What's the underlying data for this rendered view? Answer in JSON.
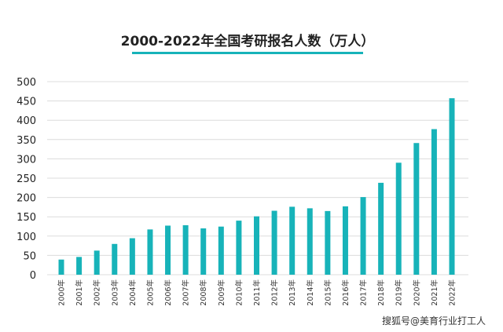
{
  "chart_data": {
    "type": "bar",
    "title": "2000-2022年全国考研报名人数（万人）",
    "xlabel": "",
    "ylabel": "",
    "ylim": [
      0,
      500
    ],
    "yticks": [
      0,
      50,
      100,
      150,
      200,
      250,
      300,
      350,
      400,
      450,
      500
    ],
    "grid": true,
    "bar_color": "#17b3b9",
    "categories": [
      "2000年",
      "2001年",
      "2002年",
      "2003年",
      "2004年",
      "2005年",
      "2006年",
      "2007年",
      "2008年",
      "2009年",
      "2010年",
      "2011年",
      "2012年",
      "2013年",
      "2014年",
      "2015年",
      "2016年",
      "2017年",
      "2018年",
      "2019年",
      "2020年",
      "2021年",
      "2022年"
    ],
    "values": [
      39.2,
      46,
      62.4,
      79.7,
      94.5,
      117.2,
      127.1,
      128.2,
      120,
      124.6,
      140,
      151.1,
      165.6,
      176,
      172,
      164.9,
      177,
      201,
      238,
      290,
      341,
      377,
      457
    ]
  },
  "watermark": "搜狐号@美育行业打工人"
}
